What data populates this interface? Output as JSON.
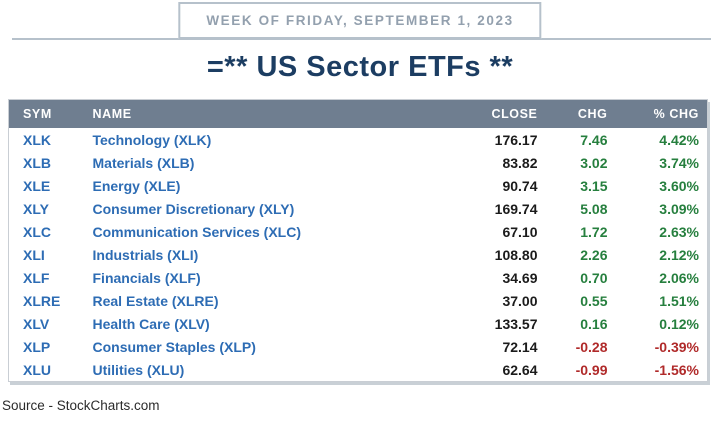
{
  "banner": {
    "text": "WEEK OF FRIDAY, SEPTEMBER 1, 2023"
  },
  "title": "=** US Sector ETFs **",
  "source": "Source - StockCharts.com",
  "colors": {
    "line": "#b6c1cb",
    "banner_text": "#93a0ae",
    "navy": "#1c3d62",
    "header_bg": "#6f7e90",
    "blue": "#2d6cb4",
    "green": "#267f3e",
    "red": "#b02a2a"
  },
  "table": {
    "headers": [
      "SYM",
      "NAME",
      "CLOSE",
      "CHG",
      "% CHG"
    ]
  },
  "chart_data": {
    "type": "table",
    "title": "=** US Sector ETFs **",
    "columns": [
      "SYM",
      "NAME",
      "CLOSE",
      "CHG",
      "% CHG"
    ],
    "rows": [
      {
        "sym": "XLK",
        "name": "Technology (XLK)",
        "close": "176.17",
        "chg": "7.46",
        "pct": "4.42%",
        "dir": "up"
      },
      {
        "sym": "XLB",
        "name": "Materials (XLB)",
        "close": "83.82",
        "chg": "3.02",
        "pct": "3.74%",
        "dir": "up"
      },
      {
        "sym": "XLE",
        "name": "Energy (XLE)",
        "close": "90.74",
        "chg": "3.15",
        "pct": "3.60%",
        "dir": "up"
      },
      {
        "sym": "XLY",
        "name": "Consumer Discretionary (XLY)",
        "close": "169.74",
        "chg": "5.08",
        "pct": "3.09%",
        "dir": "up"
      },
      {
        "sym": "XLC",
        "name": "Communication Services (XLC)",
        "close": "67.10",
        "chg": "1.72",
        "pct": "2.63%",
        "dir": "up"
      },
      {
        "sym": "XLI",
        "name": "Industrials (XLI)",
        "close": "108.80",
        "chg": "2.26",
        "pct": "2.12%",
        "dir": "up"
      },
      {
        "sym": "XLF",
        "name": "Financials (XLF)",
        "close": "34.69",
        "chg": "0.70",
        "pct": "2.06%",
        "dir": "up"
      },
      {
        "sym": "XLRE",
        "name": "Real Estate (XLRE)",
        "close": "37.00",
        "chg": "0.55",
        "pct": "1.51%",
        "dir": "up"
      },
      {
        "sym": "XLV",
        "name": "Health Care (XLV)",
        "close": "133.57",
        "chg": "0.16",
        "pct": "0.12%",
        "dir": "up"
      },
      {
        "sym": "XLP",
        "name": "Consumer Staples (XLP)",
        "close": "72.14",
        "chg": "-0.28",
        "pct": "-0.39%",
        "dir": "down"
      },
      {
        "sym": "XLU",
        "name": "Utilities (XLU)",
        "close": "62.64",
        "chg": "-0.99",
        "pct": "-1.56%",
        "dir": "down"
      }
    ]
  }
}
